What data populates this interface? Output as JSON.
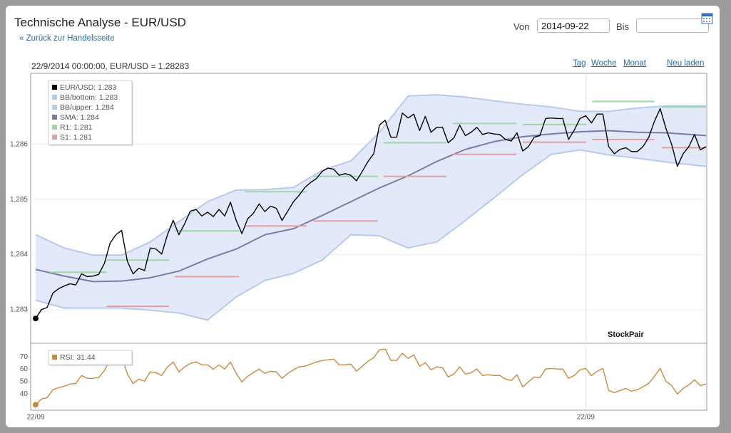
{
  "header": {
    "title": "Technische Analyse - EUR/USD",
    "back_link": "« Zurück zur Handelsseite",
    "from_label": "Von",
    "from_value": "2014-09-22",
    "to_label": "Bis"
  },
  "status": "22/9/2014 00:00:00, EUR/USD = 1.28283",
  "range_links": [
    "Tag",
    "Woche",
    "Monat"
  ],
  "reload": "Neu laden",
  "watermark": "StockPair",
  "chart_data": [
    {
      "type": "line",
      "ylim": [
        1.28239,
        1.28729
      ],
      "yticks": [
        {
          "value": 1.283,
          "label": "1,283"
        },
        {
          "value": 1.284,
          "label": "1,284"
        },
        {
          "value": 1.285,
          "label": "1,285"
        },
        {
          "value": 1.286,
          "label": "1,286"
        }
      ],
      "grid": true,
      "band_color": "#e2e9f9",
      "series": [
        {
          "name": "EUR/USD: 1.283",
          "color": "#000000",
          "values": [
            1.28284,
            1.283,
            1.28304,
            1.2833,
            1.28338,
            1.28343,
            1.28347,
            1.28345,
            1.28365,
            1.2836,
            1.28361,
            1.28364,
            1.28384,
            1.28421,
            1.28436,
            1.28444,
            1.28388,
            1.28365,
            1.28375,
            1.28371,
            1.28412,
            1.2841,
            1.28401,
            1.28436,
            1.28462,
            1.28436,
            1.28456,
            1.28479,
            1.28482,
            1.2847,
            1.28477,
            1.28469,
            1.28482,
            1.2847,
            1.28495,
            1.28462,
            1.28438,
            1.28465,
            1.28475,
            1.28492,
            1.28478,
            1.28488,
            1.28484,
            1.28462,
            1.28479,
            1.28496,
            1.28508,
            1.28522,
            1.28531,
            1.28538,
            1.28551,
            1.28557,
            1.28555,
            1.28544,
            1.28547,
            1.28544,
            1.28534,
            1.28551,
            1.28569,
            1.28583,
            1.28635,
            1.28644,
            1.28613,
            1.28613,
            1.28657,
            1.28648,
            1.28655,
            1.28625,
            1.28651,
            1.28622,
            1.28631,
            1.28631,
            1.28603,
            1.28612,
            1.28635,
            1.28616,
            1.28622,
            1.28631,
            1.28618,
            1.28621,
            1.28619,
            1.28618,
            1.28609,
            1.28606,
            1.28621,
            1.28588,
            1.28596,
            1.28613,
            1.28616,
            1.28647,
            1.28648,
            1.28647,
            1.28647,
            1.28609,
            1.28626,
            1.28647,
            1.28652,
            1.28639,
            1.28655,
            1.28655,
            1.28596,
            1.28583,
            1.28591,
            1.28594,
            1.28587,
            1.28587,
            1.28596,
            1.28613,
            1.28642,
            1.28665,
            1.28629,
            1.286,
            1.2856,
            1.28583,
            1.28596,
            1.28618,
            1.2859,
            1.28596
          ]
        },
        {
          "name": "BB/bottom: 1.283",
          "color": "#b7caee",
          "x": [
            0,
            5,
            10,
            15,
            20,
            25,
            30,
            35,
            40,
            45,
            50,
            55,
            60,
            65,
            70,
            75,
            80,
            85,
            90,
            95,
            100,
            105,
            110,
            117
          ],
          "values": [
            1.28317,
            1.28303,
            1.28303,
            1.28303,
            1.28299,
            1.28294,
            1.28281,
            1.28323,
            1.28353,
            1.28366,
            1.2839,
            1.28436,
            1.28434,
            1.28412,
            1.28423,
            1.28462,
            1.28503,
            1.28545,
            1.28582,
            1.2859,
            1.28581,
            1.28575,
            1.28568,
            1.2856
          ]
        },
        {
          "name": "BB/upper: 1.284",
          "color": "#b7caee",
          "x": [
            0,
            5,
            10,
            15,
            20,
            25,
            30,
            35,
            40,
            45,
            50,
            55,
            60,
            65,
            70,
            75,
            80,
            85,
            90,
            95,
            100,
            105,
            110,
            117
          ],
          "values": [
            1.28436,
            1.28412,
            1.28399,
            1.28399,
            1.28423,
            1.2846,
            1.28496,
            1.28517,
            1.28518,
            1.28522,
            1.28553,
            1.2857,
            1.28622,
            1.28688,
            1.2869,
            1.28686,
            1.28679,
            1.28673,
            1.28668,
            1.2866,
            1.2866,
            1.28666,
            1.2867,
            1.2867
          ]
        },
        {
          "name": "SMA: 1.284",
          "color": "#8078a8",
          "x": [
            0,
            5,
            10,
            15,
            20,
            25,
            30,
            35,
            40,
            45,
            50,
            55,
            60,
            65,
            70,
            75,
            80,
            85,
            90,
            95,
            100,
            105,
            110,
            117
          ],
          "values": [
            1.28373,
            1.28361,
            1.28351,
            1.28352,
            1.28358,
            1.2837,
            1.28392,
            1.2841,
            1.28436,
            1.28447,
            1.28471,
            1.28496,
            1.28521,
            1.28543,
            1.28569,
            1.28591,
            1.28605,
            1.28614,
            1.28619,
            1.28623,
            1.28625,
            1.28622,
            1.28621,
            1.28616
          ]
        },
        {
          "name": "R1: 1.281",
          "color": "#9fd6a8",
          "x": [
            [
              2.5,
              12.4
            ],
            [
              12.4,
              23.3
            ],
            [
              24.3,
              35.5
            ],
            [
              36.5,
              47.3
            ],
            [
              48.5,
              59.7
            ],
            [
              60.7,
              71.7
            ],
            [
              72.8,
              83.9
            ],
            [
              85.0,
              96.1
            ],
            [
              97.1,
              108.0
            ],
            [
              109.3,
              117
            ]
          ],
          "values": [
            1.28368,
            1.2839,
            1.28443,
            1.28514,
            1.28542,
            1.28603,
            1.28638,
            1.28636,
            1.28678,
            1.28668
          ]
        },
        {
          "name": "S1: 1.281",
          "color": "#e4a0a0",
          "x": [
            [
              12.4,
              23.3
            ],
            [
              24.3,
              35.5
            ],
            [
              36.5,
              47.3
            ],
            [
              48.5,
              59.7
            ],
            [
              60.7,
              71.7
            ],
            [
              72.8,
              83.9
            ],
            [
              85.0,
              96.1
            ],
            [
              97.1,
              108.0
            ],
            [
              109.3,
              117
            ]
          ],
          "values": [
            1.28306,
            1.2836,
            1.28452,
            1.28461,
            1.28542,
            1.28582,
            1.28604,
            1.28609,
            1.28594
          ]
        }
      ]
    },
    {
      "type": "line",
      "ylim": [
        27,
        81
      ],
      "yticks": [
        40,
        50,
        60,
        70
      ],
      "categories": [
        "22/09",
        null,
        null,
        null,
        null,
        null,
        null,
        null,
        null,
        null,
        null,
        null,
        null,
        null,
        null,
        null,
        null,
        null,
        null,
        null,
        null,
        null,
        null,
        null,
        null,
        null,
        null,
        null,
        null,
        null,
        null,
        null,
        null,
        null,
        null,
        null,
        null,
        null,
        null,
        null,
        null,
        null,
        null,
        null,
        null,
        null,
        null,
        null,
        null,
        null,
        null,
        null,
        null,
        null,
        null,
        null,
        null,
        null,
        null,
        null,
        null,
        null,
        null,
        null,
        null,
        null,
        null,
        null,
        null,
        null,
        null,
        null,
        null,
        null,
        null,
        null,
        null,
        null,
        null,
        null,
        null,
        null,
        null,
        null,
        null,
        null,
        null,
        null,
        null,
        null,
        null,
        null,
        null,
        null,
        null,
        null,
        "22/09",
        null,
        null,
        null,
        null,
        null,
        null,
        null,
        null,
        null,
        null,
        null,
        null,
        null,
        null,
        null,
        null,
        null,
        null,
        null,
        null,
        null
      ],
      "series": [
        {
          "name": "RSI: 31.44",
          "color": "#c98a3e",
          "values": [
            31.4,
            36.0,
            37.1,
            43.5,
            45.2,
            46.3,
            48.1,
            48.6,
            55.0,
            52.7,
            52.7,
            53.3,
            59.0,
            67.7,
            70.5,
            71.1,
            56.1,
            48.6,
            52.1,
            50.4,
            57.9,
            57.3,
            55.0,
            61.9,
            65.9,
            57.9,
            61.9,
            64.8,
            65.9,
            63.6,
            63.6,
            60.2,
            63.6,
            60.2,
            65.9,
            56.7,
            49.8,
            54.4,
            57.3,
            60.2,
            56.7,
            58.4,
            57.9,
            52.7,
            56.7,
            59.6,
            61.9,
            62.5,
            64.2,
            65.9,
            67.1,
            67.7,
            68.2,
            63.6,
            63.6,
            64.2,
            58.4,
            62.5,
            66.5,
            69.4,
            75.7,
            76.3,
            67.1,
            67.1,
            72.9,
            68.8,
            71.7,
            62.5,
            65.4,
            59.6,
            61.9,
            61.3,
            53.8,
            56.1,
            61.9,
            56.1,
            57.3,
            60.2,
            55.0,
            55.6,
            55.0,
            55.0,
            52.1,
            51.0,
            55.6,
            45.8,
            49.8,
            53.8,
            53.3,
            60.2,
            60.7,
            60.2,
            60.2,
            52.7,
            55.0,
            59.6,
            60.7,
            55.0,
            58.4,
            60.7,
            42.9,
            41.2,
            42.9,
            44.6,
            42.3,
            43.5,
            45.8,
            48.6,
            54.4,
            60.7,
            50.4,
            46.9,
            40.0,
            44.6,
            47.5,
            51.5,
            46.9,
            48.1
          ]
        }
      ]
    }
  ]
}
